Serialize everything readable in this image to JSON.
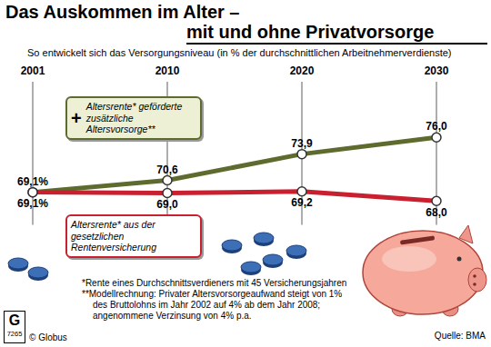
{
  "chart_data": {
    "type": "line",
    "title": "Das Auskommen im Alter – mit und ohne Privatvorsorge",
    "subtitle": "So entwickelt sich das Versorgungsniveau (in % der durchschnittlichen Arbeitnehmerverdienste)",
    "categories": [
      "2001",
      "2010",
      "2020",
      "2030"
    ],
    "series": [
      {
        "name": "+ Altersrente* geförderte zusätzliche Altersvorsorge**",
        "color": "#5e6b2f",
        "values": [
          69.1,
          70.6,
          73.9,
          76.0
        ],
        "value_labels": [
          "69,1%",
          "70,6",
          "73,9",
          "76,0"
        ],
        "marker": "circle"
      },
      {
        "name": "Altersrente* aus der gesetzlichen Rentenversicherung",
        "color": "#c8202f",
        "values": [
          69.1,
          69.0,
          69.2,
          68.0
        ],
        "value_labels": [
          "69,1%",
          "69,0",
          "69,2",
          "68,0"
        ],
        "marker": "circle"
      }
    ],
    "ylim": [
      65,
      83
    ],
    "grid": true,
    "data_labels": true,
    "tick_labels": "x",
    "footnotes": [
      "*Rente eines Durchschnittsverdieners mit 45 Versicherungsjahren",
      "**Modellrechnung: Privater Altersvorsorgeaufwand steigt von 1% des Bruttolohns im Jahr 2002 auf 4% ab dem Jahr 2008; angenommene Verzinsung von 4% p.a."
    ],
    "source": "Quelle: BMA",
    "credit": "© Globus",
    "logo": "G",
    "code": "7265"
  }
}
